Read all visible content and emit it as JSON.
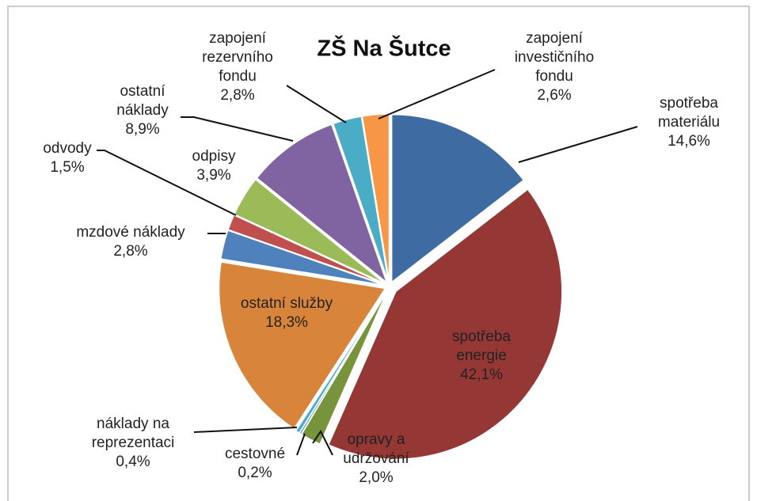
{
  "chart_data": {
    "type": "pie",
    "title": "ZŠ Na Šutce",
    "categories": [
      "spotřeba materiálu",
      "spotřeba energie",
      "opravy a udržování",
      "cestovné",
      "náklady na reprezentaci",
      "ostatní služby",
      "mzdové náklady",
      "odvody",
      "odpisy",
      "ostatní náklady",
      "zapojení rezervního fondu",
      "zapojení investičního fondu"
    ],
    "values": [
      14.6,
      42.1,
      2.0,
      0.2,
      0.4,
      18.3,
      2.8,
      1.5,
      3.9,
      8.9,
      2.8,
      2.6
    ],
    "value_labels": [
      "14,6%",
      "42,1%",
      "2,0%",
      "0,2%",
      "0,4%",
      "18,3%",
      "2,8%",
      "1,5%",
      "3,9%",
      "8,9%",
      "2,8%",
      "2,6%"
    ],
    "colors": [
      "#3f6ba3",
      "#953735",
      "#77933c",
      "#4f81bd",
      "#4bacc6",
      "#d9843b",
      "#4f81bd",
      "#c0504d",
      "#9bbb59",
      "#8064a2",
      "#4bacc6",
      "#f79646"
    ]
  }
}
